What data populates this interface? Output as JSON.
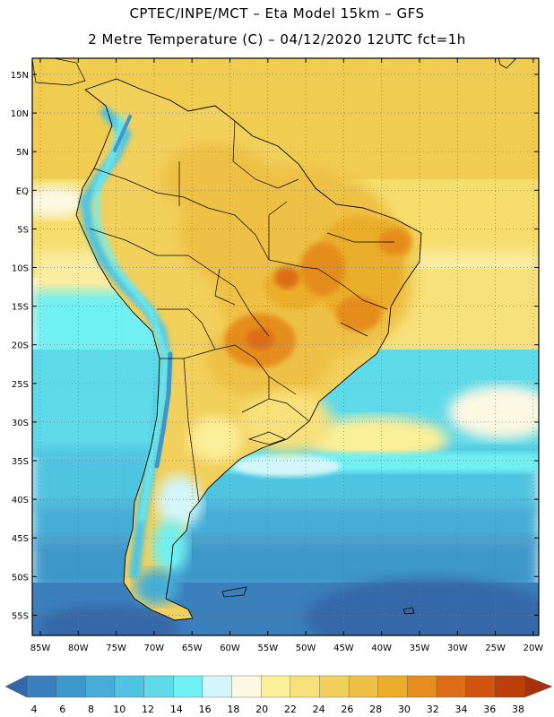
{
  "header": {
    "title_line1": "CPTEC/INPE/MCT –  Eta Model 15km – GFS",
    "title_line2": "2 Metre Temperature (C) – 04/12/2020 12UTC fct=1h"
  },
  "axes": {
    "lat_labels": [
      "15N",
      "10N",
      "5N",
      "EQ",
      "5S",
      "10S",
      "15S",
      "20S",
      "25S",
      "30S",
      "35S",
      "40S",
      "45S",
      "50S",
      "55S"
    ],
    "lon_labels": [
      "85W",
      "80W",
      "75W",
      "70W",
      "65W",
      "60W",
      "55W",
      "50W",
      "45W",
      "40W",
      "35W",
      "30W",
      "25W",
      "20W"
    ]
  },
  "colorbar": {
    "labels": [
      "4",
      "6",
      "8",
      "10",
      "12",
      "14",
      "16",
      "18",
      "20",
      "22",
      "24",
      "26",
      "28",
      "30",
      "32",
      "34",
      "36",
      "38"
    ],
    "colors": [
      "#3567a8",
      "#3b7fbc",
      "#3e97c9",
      "#45add6",
      "#4fc4e0",
      "#5fdae9",
      "#6ff0f2",
      "#d2f6fa",
      "#fdf8e2",
      "#fcef9a",
      "#f8e07a",
      "#f2d05c",
      "#eec045",
      "#eaae2a",
      "#e58d1e",
      "#de6e16",
      "#d0530f",
      "#bc3e09"
    ]
  }
}
